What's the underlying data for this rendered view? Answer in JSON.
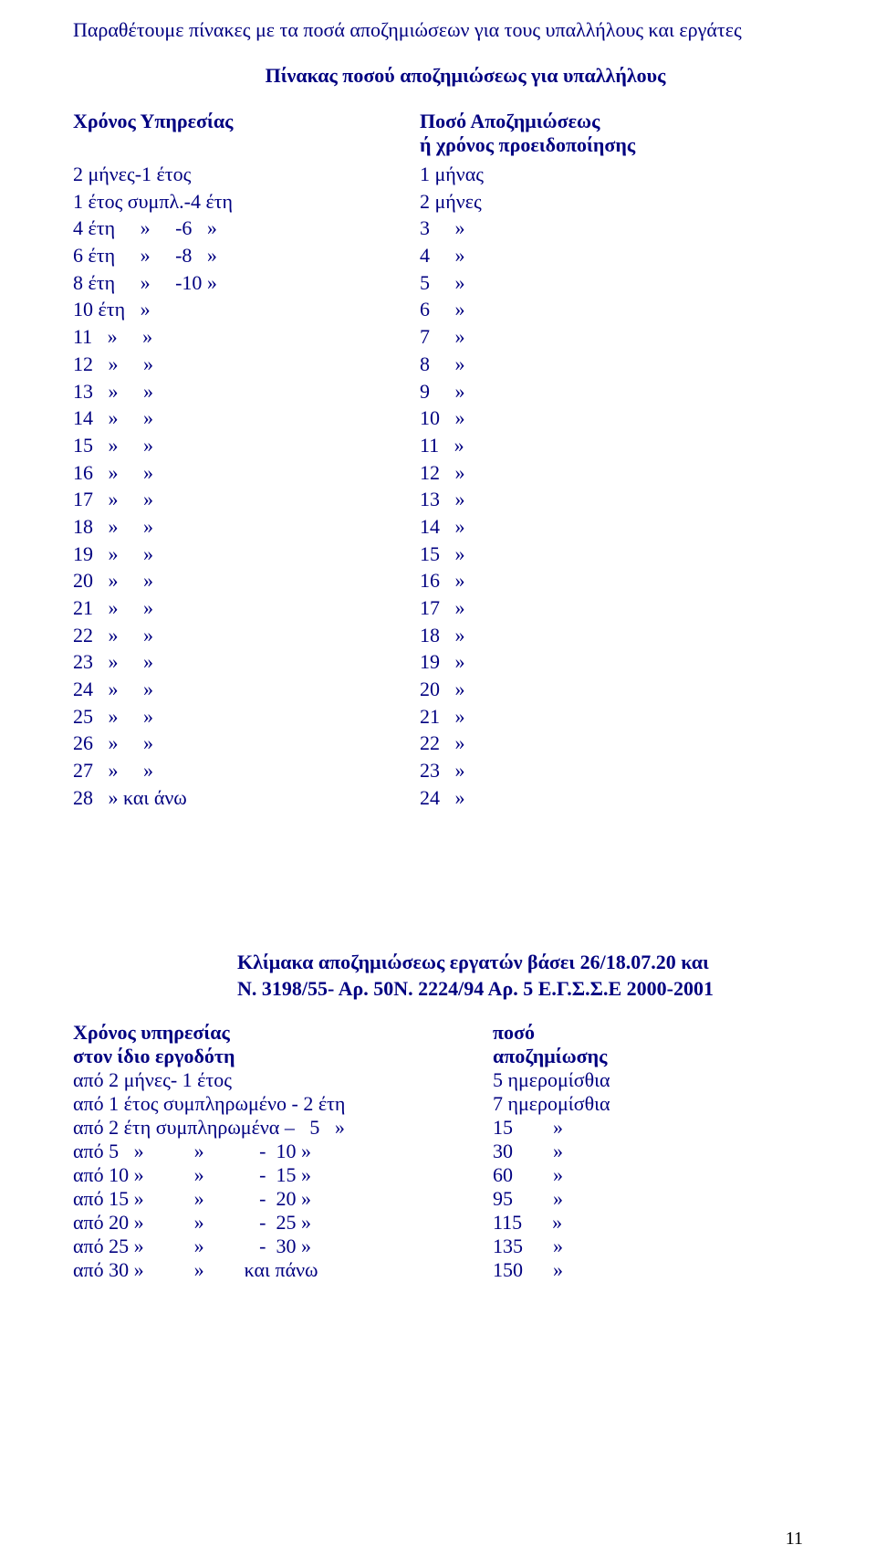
{
  "colors": {
    "text": "#000080",
    "background": "#ffffff",
    "pagenum": "#000000"
  },
  "intro": "Παραθέτουμε πίνακες με τα ποσά αποζημιώσεων για τους υπαλλήλους και εργάτες",
  "table1_title": "Πίνακας ποσού αποζημιώσεως για υπαλλήλους",
  "table1_head_left": "Χρόνος Υπηρεσίας",
  "table1_head_right1": "Ποσό Αποζημιώσεως",
  "table1_head_right2": "ή χρόνος προειδοποίησης",
  "table1_rows": [
    {
      "l": "2 μήνες-1 έτος",
      "r": "1 μήνας"
    },
    {
      "l": "1 έτος συμπλ.-4 έτη",
      "r": "2 μήνες"
    },
    {
      "l": "4 έτη     »     -6   »",
      "r": "3     »"
    },
    {
      "l": "6 έτη     »     -8   »",
      "r": "4     »"
    },
    {
      "l": "8 έτη     »     -10 »",
      "r": "5     »"
    },
    {
      "l": "10 έτη   »",
      "r": "6     »"
    },
    {
      "l": "11   »     »",
      "r": "7     »"
    },
    {
      "l": "12   »     »",
      "r": "8     »"
    },
    {
      "l": "13   »     »",
      "r": "9     »"
    },
    {
      "l": "14   »     »",
      "r": "10   »"
    },
    {
      "l": "15   »     »",
      "r": "11   »"
    },
    {
      "l": "16   »     »",
      "r": "12   »"
    },
    {
      "l": "17   »     »",
      "r": "13   »"
    },
    {
      "l": "18   »     »",
      "r": "14   »"
    },
    {
      "l": "19   »     »",
      "r": "15   »"
    },
    {
      "l": "20   »     »",
      "r": "16   »"
    },
    {
      "l": "21   »     »",
      "r": "17   »"
    },
    {
      "l": "22   »     »",
      "r": "18   »"
    },
    {
      "l": "23   »     »",
      "r": "19   »"
    },
    {
      "l": "24   »     »",
      "r": "20   »"
    },
    {
      "l": "25   »     »",
      "r": "21   »"
    },
    {
      "l": "26   »     »",
      "r": "22   »"
    },
    {
      "l": "27   »     »",
      "r": "23   »"
    },
    {
      "l": "28   » και άνω",
      "r": "24   »"
    }
  ],
  "table2_title_l1": "Κλίμακα αποζημιώσεως εργατών βάσει 26/18.07.20 και",
  "table2_title_l2": "Ν. 3198/55- Αρ. 50Ν. 2224/94 Αρ. 5 Ε.Γ.Σ.Σ.Ε 2000-2001",
  "table2_head_left1": "Χρόνος υπηρεσίας",
  "table2_head_left2": "στον ίδιο εργοδότη",
  "table2_head_right1": "ποσό",
  "table2_head_right2": "αποζημίωσης",
  "table2_rows": [
    {
      "l": "από 2 μήνες- 1 έτος",
      "r": "5 ημερομίσθια"
    },
    {
      "l": "από 1 έτος συμπληρωμένο - 2 έτη",
      "r": "7 ημερομίσθια"
    },
    {
      "l": "από 2 έτη συμπληρωμένα –   5   »",
      "r": "15        »"
    },
    {
      "l": "από 5   »          »           -  10 »",
      "r": "30        »"
    },
    {
      "l": "από 10 »          »           -  15 »",
      "r": "60        »"
    },
    {
      "l": "από 15 »          »           -  20 »",
      "r": "95        »"
    },
    {
      "l": "από 20 »          »           -  25 »",
      "r": "115      »"
    },
    {
      "l": "από 25 »          »           -  30 »",
      "r": "135      »"
    },
    {
      "l": "από 30 »          »        και πάνω",
      "r": "150      »"
    }
  ],
  "page_number": "11"
}
